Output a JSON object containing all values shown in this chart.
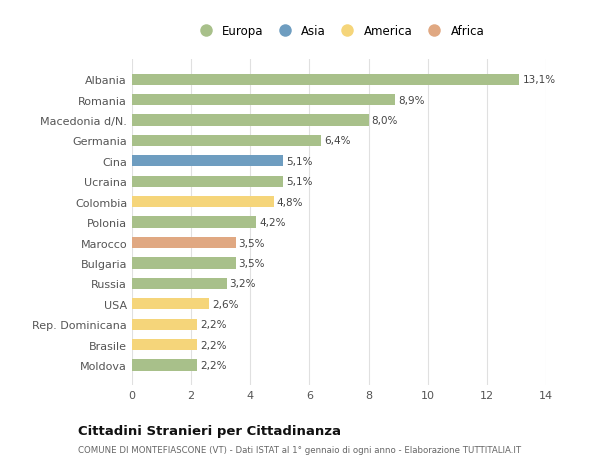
{
  "categories": [
    "Albania",
    "Romania",
    "Macedonia d/N.",
    "Germania",
    "Cina",
    "Ucraina",
    "Colombia",
    "Polonia",
    "Marocco",
    "Bulgaria",
    "Russia",
    "USA",
    "Rep. Dominicana",
    "Brasile",
    "Moldova"
  ],
  "values": [
    13.1,
    8.9,
    8.0,
    6.4,
    5.1,
    5.1,
    4.8,
    4.2,
    3.5,
    3.5,
    3.2,
    2.6,
    2.2,
    2.2,
    2.2
  ],
  "labels": [
    "13,1%",
    "8,9%",
    "8,0%",
    "6,4%",
    "5,1%",
    "5,1%",
    "4,8%",
    "4,2%",
    "3,5%",
    "3,5%",
    "3,2%",
    "2,6%",
    "2,2%",
    "2,2%",
    "2,2%"
  ],
  "continents": [
    "Europa",
    "Europa",
    "Europa",
    "Europa",
    "Asia",
    "Europa",
    "America",
    "Europa",
    "Africa",
    "Europa",
    "Europa",
    "America",
    "America",
    "America",
    "Europa"
  ],
  "colors": {
    "Europa": "#a8c08a",
    "Asia": "#6e9dc0",
    "America": "#f5d57a",
    "Africa": "#e0a882"
  },
  "legend_order": [
    "Europa",
    "Asia",
    "America",
    "Africa"
  ],
  "title": "Cittadini Stranieri per Cittadinanza",
  "subtitle": "COMUNE DI MONTEFIASCONE (VT) - Dati ISTAT al 1° gennaio di ogni anno - Elaborazione TUTTITALIA.IT",
  "xlim": [
    0,
    14
  ],
  "xticks": [
    0,
    2,
    4,
    6,
    8,
    10,
    12,
    14
  ],
  "background_color": "#ffffff",
  "grid_color": "#e0e0e0"
}
